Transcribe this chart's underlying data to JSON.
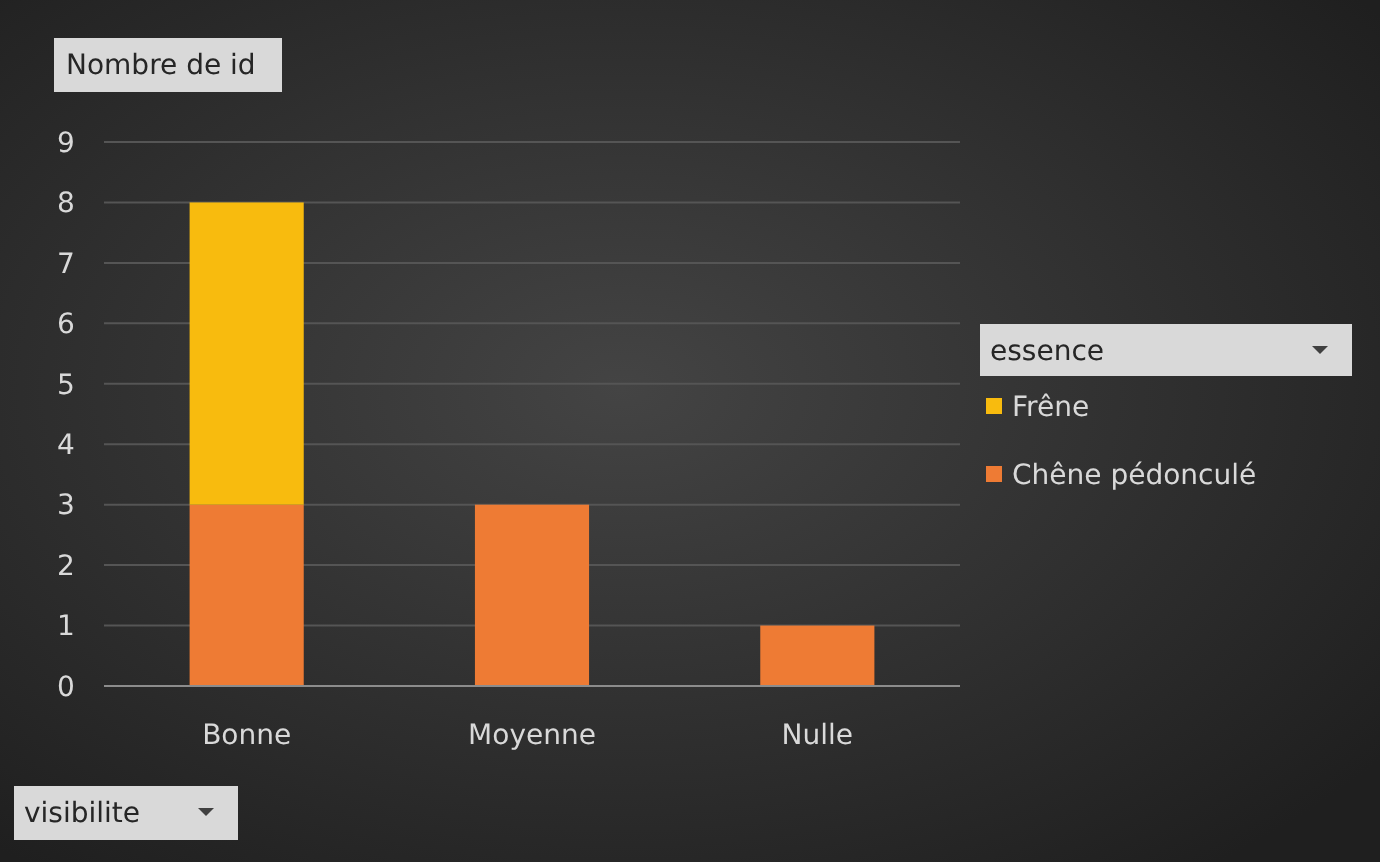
{
  "chart_data": {
    "type": "bar",
    "stacked": true,
    "ylabel": "Nombre de id",
    "xlabel": "visibilite",
    "legend_title": "essence",
    "legend": "right",
    "grid": "y",
    "categories": [
      "Bonne",
      "Moyenne",
      "Nulle"
    ],
    "series": [
      {
        "name": "Chêne pédonculé",
        "color": "#ee7b34",
        "values": [
          3,
          3,
          1
        ]
      },
      {
        "name": "Frêne",
        "color": "#f8bb0e",
        "values": [
          5,
          0,
          0
        ]
      }
    ],
    "ylim": [
      0,
      9
    ],
    "yticks": [
      0,
      1,
      2,
      3,
      4,
      5,
      6,
      7,
      8,
      9
    ]
  }
}
